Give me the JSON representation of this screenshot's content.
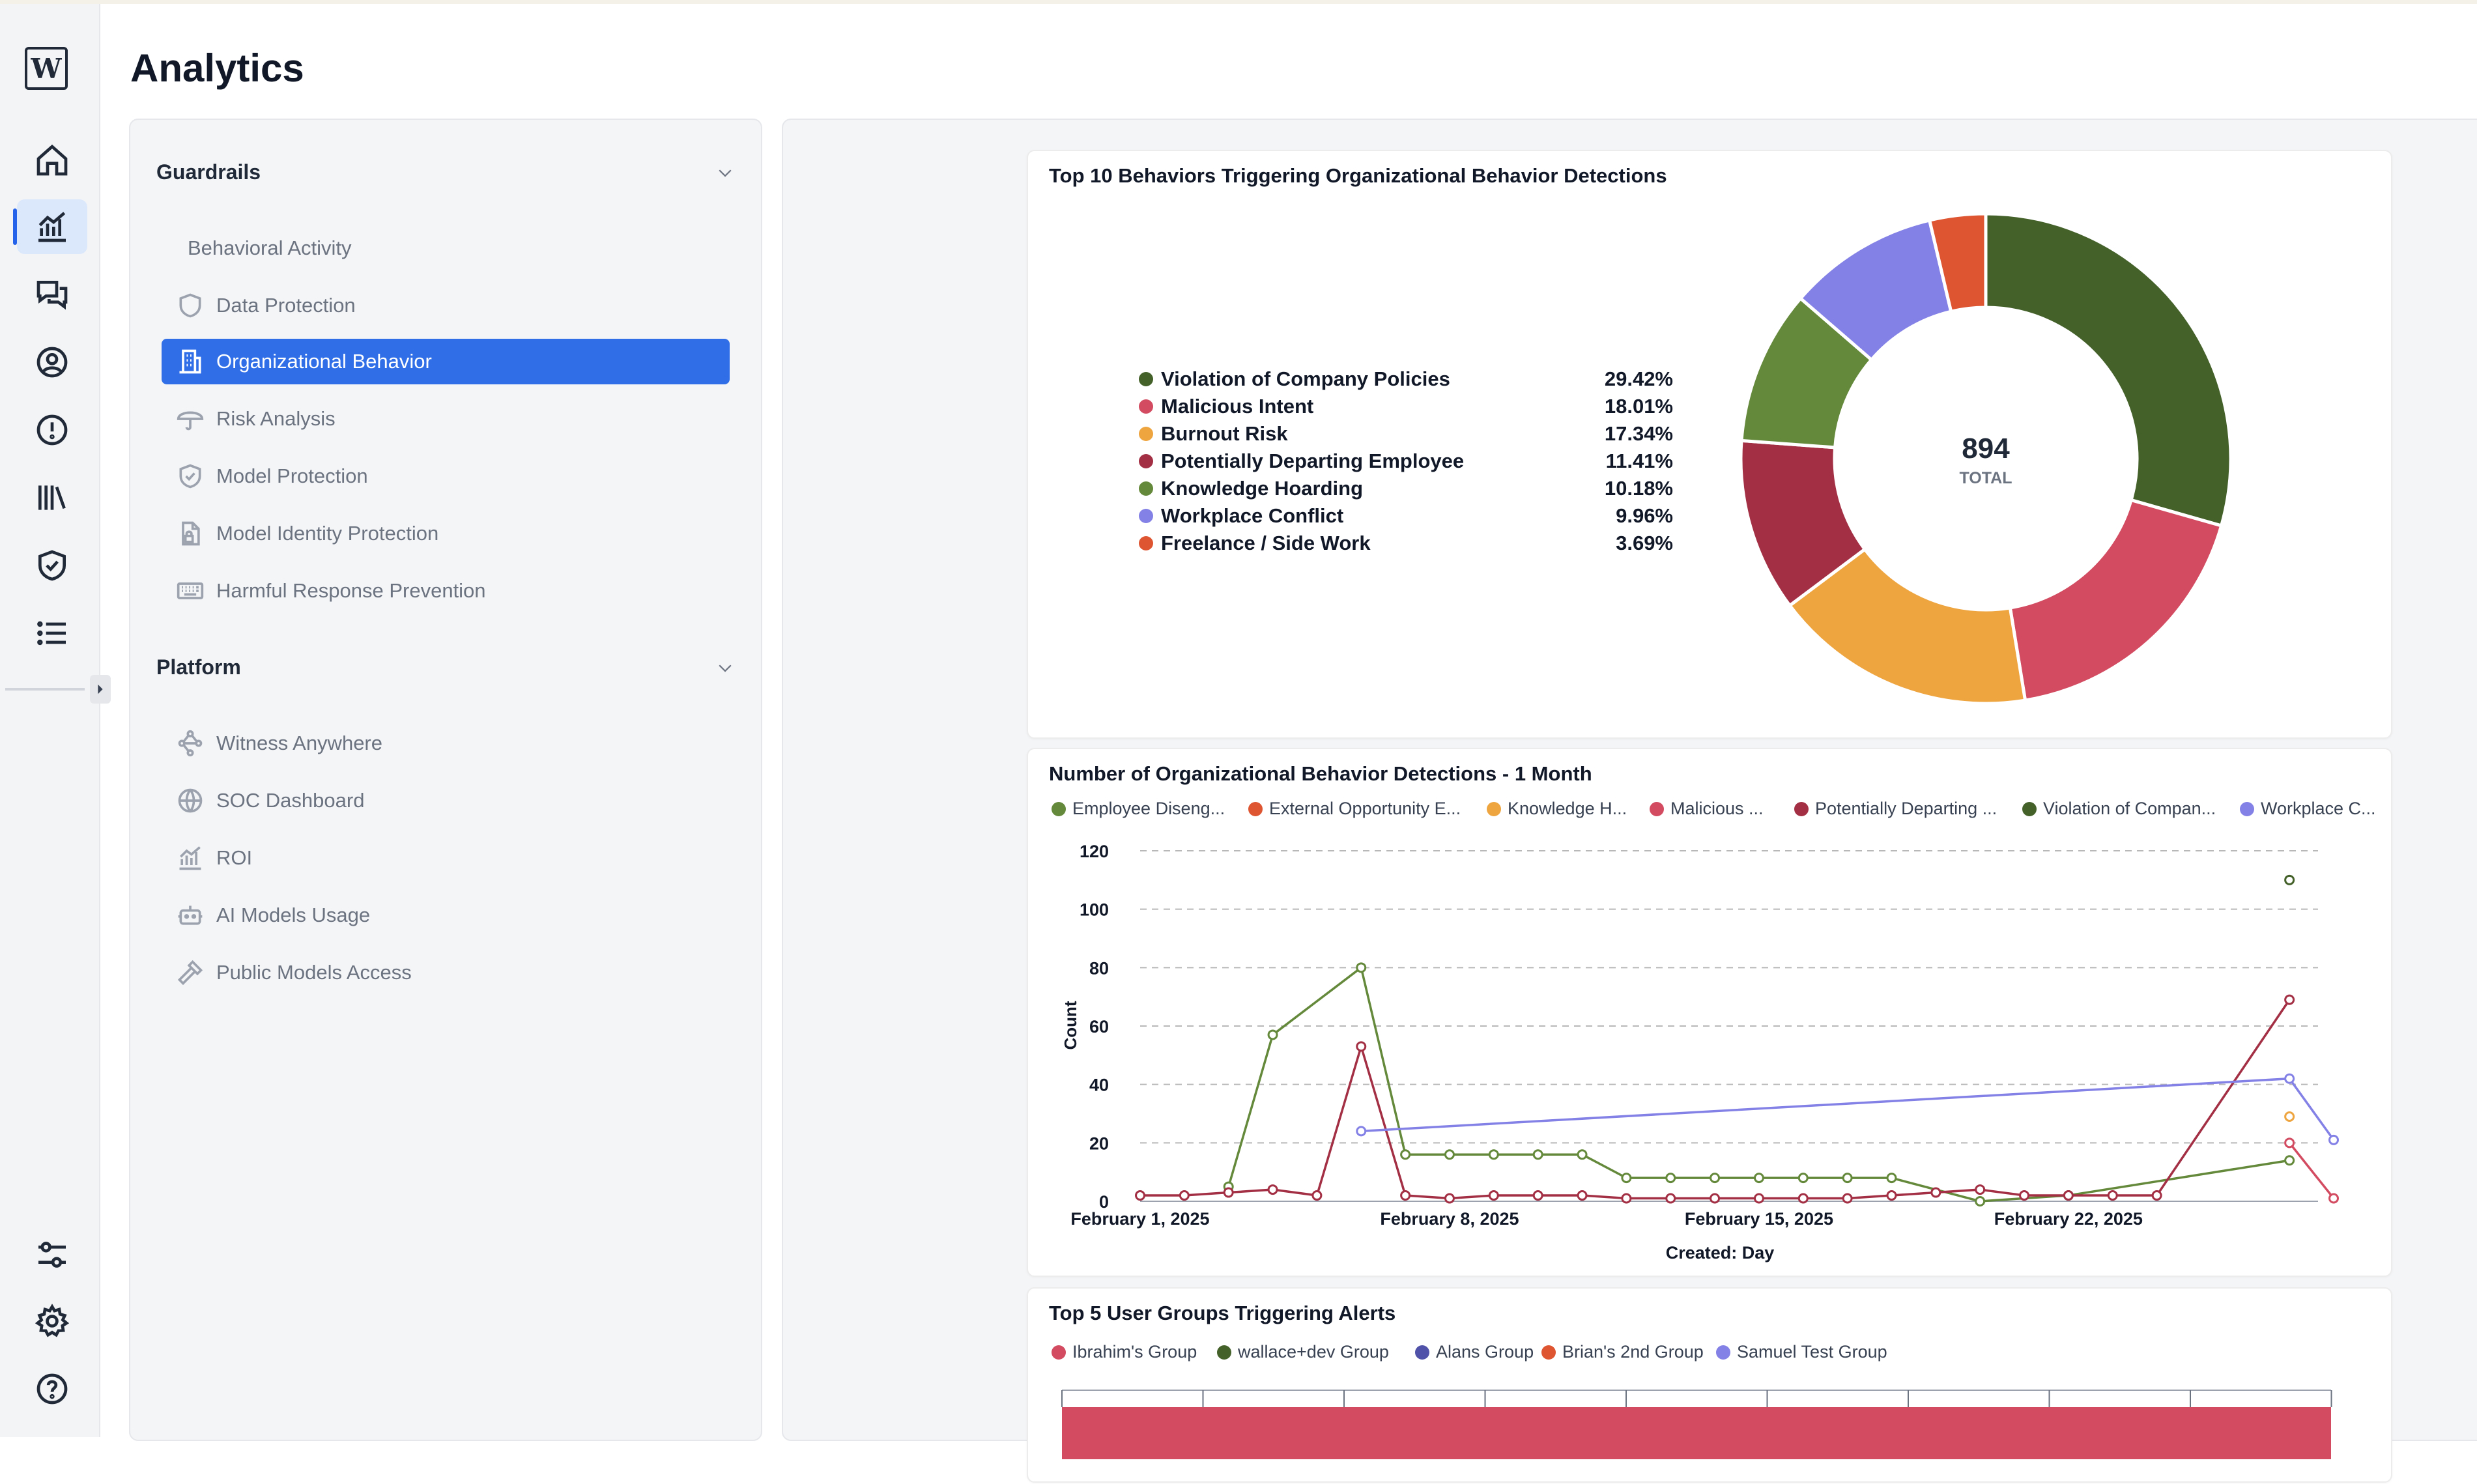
{
  "page": {
    "title": "Analytics"
  },
  "rail": {
    "logo_letter": "W",
    "icons": [
      "home-icon",
      "analytics-icon",
      "chat-icon",
      "user-circle-icon",
      "alert-icon",
      "library-icon",
      "shield-check-icon",
      "list-icon",
      "sliders-icon",
      "gear-icon",
      "help-icon"
    ],
    "active": "analytics-icon"
  },
  "nav": {
    "guardrails": {
      "label": "Guardrails",
      "items": [
        {
          "label": "Behavioral Activity",
          "icon": "none"
        },
        {
          "label": "Data Protection",
          "icon": "shield-icon"
        },
        {
          "label": "Organizational Behavior",
          "icon": "building-icon"
        },
        {
          "label": "Risk Analysis",
          "icon": "umbrella-icon"
        },
        {
          "label": "Model Protection",
          "icon": "shield-check-icon"
        },
        {
          "label": "Model Identity Protection",
          "icon": "file-lock-icon"
        },
        {
          "label": "Harmful Response Prevention",
          "icon": "keyboard-icon"
        }
      ],
      "active_index": 2
    },
    "platform": {
      "label": "Platform",
      "items": [
        {
          "label": "Witness Anywhere",
          "icon": "workflow-icon"
        },
        {
          "label": "SOC Dashboard",
          "icon": "globe-icon"
        },
        {
          "label": "ROI",
          "icon": "chart-icon"
        },
        {
          "label": "AI Models Usage",
          "icon": "robot-icon"
        },
        {
          "label": "Public Models Access",
          "icon": "hammer-icon"
        }
      ]
    }
  },
  "donut_card": {
    "title": "Top 10 Behaviors Triggering Organizational Behavior Detections",
    "total_value": "894",
    "total_label": "TOTAL",
    "chart_data": {
      "type": "pie",
      "title": "Top 10 Behaviors Triggering Organizational Behavior Detections",
      "total": 894,
      "slices": [
        {
          "label": "Violation of Company Policies",
          "percent_label": "29.42%",
          "value": 29.42,
          "color": "#44612a"
        },
        {
          "label": "Malicious Intent",
          "percent_label": "18.01%",
          "value": 18.01,
          "color": "#d24b60"
        },
        {
          "label": "Burnout Risk",
          "percent_label": "17.34%",
          "value": 17.34,
          "color": "#eea43f"
        },
        {
          "label": "Potentially Departing Employee",
          "percent_label": "11.41%",
          "value": 11.41,
          "color": "#a32f44"
        },
        {
          "label": "Knowledge Hoarding",
          "percent_label": "10.18%",
          "value": 10.18,
          "color": "#64893a"
        },
        {
          "label": "Workplace Conflict",
          "percent_label": "9.96%",
          "value": 9.96,
          "color": "#8380e6"
        },
        {
          "label": "Freelance / Side Work",
          "percent_label": "3.69%",
          "value": 3.69,
          "color": "#de5532"
        }
      ],
      "legend_placement": "left"
    }
  },
  "line_card": {
    "title": "Number of Organizational Behavior Detections - 1 Month",
    "chart_data": {
      "type": "line",
      "title": "Number of Organizational Behavior Detections - 1 Month",
      "xlabel": "Created: Day",
      "ylabel": "Count",
      "ylim": [
        0,
        120
      ],
      "yticks": [
        "0",
        "20",
        "40",
        "60",
        "80",
        "100",
        "120"
      ],
      "xticks": [
        {
          "label": "February 1, 2025",
          "x": "2025-02-01"
        },
        {
          "label": "February 8, 2025",
          "x": "2025-02-08"
        },
        {
          "label": "February 15, 2025",
          "x": "2025-02-15"
        },
        {
          "label": "February 22, 2025",
          "x": "2025-02-22"
        }
      ],
      "xrange": [
        "2025-02-01",
        "2025-02-28"
      ],
      "grid": true,
      "legend_placement": "top",
      "series": [
        {
          "name": "Employee Diseng...",
          "color": "#64893a",
          "points": [
            [
              "2025-02-03",
              5
            ],
            [
              "2025-02-04",
              57
            ],
            [
              "2025-02-06",
              80
            ],
            [
              "2025-02-07",
              16
            ],
            [
              "2025-02-08",
              16
            ],
            [
              "2025-02-09",
              16
            ],
            [
              "2025-02-10",
              16
            ],
            [
              "2025-02-11",
              16
            ],
            [
              "2025-02-12",
              8
            ],
            [
              "2025-02-13",
              8
            ],
            [
              "2025-02-14",
              8
            ],
            [
              "2025-02-15",
              8
            ],
            [
              "2025-02-16",
              8
            ],
            [
              "2025-02-17",
              8
            ],
            [
              "2025-02-18",
              8
            ],
            [
              "2025-02-20",
              0
            ],
            [
              "2025-02-22",
              2
            ],
            [
              "2025-02-27",
              14
            ]
          ]
        },
        {
          "name": "External Opportunity E...",
          "color": "#de5532",
          "points": []
        },
        {
          "name": "Knowledge H...",
          "color": "#eea43f",
          "points": [
            [
              "2025-02-27",
              29
            ]
          ]
        },
        {
          "name": "Malicious ...",
          "color": "#d24b60",
          "points": [
            [
              "2025-02-27",
              20
            ],
            [
              "2025-02-28",
              1
            ]
          ]
        },
        {
          "name": "Potentially Departing ...",
          "color": "#a32f44",
          "points": [
            [
              "2025-02-01",
              2
            ],
            [
              "2025-02-02",
              2
            ],
            [
              "2025-02-03",
              3
            ],
            [
              "2025-02-04",
              4
            ],
            [
              "2025-02-05",
              2
            ],
            [
              "2025-02-06",
              53
            ],
            [
              "2025-02-07",
              2
            ],
            [
              "2025-02-08",
              1
            ],
            [
              "2025-02-09",
              2
            ],
            [
              "2025-02-10",
              2
            ],
            [
              "2025-02-11",
              2
            ],
            [
              "2025-02-12",
              1
            ],
            [
              "2025-02-13",
              1
            ],
            [
              "2025-02-14",
              1
            ],
            [
              "2025-02-15",
              1
            ],
            [
              "2025-02-16",
              1
            ],
            [
              "2025-02-17",
              1
            ],
            [
              "2025-02-18",
              2
            ],
            [
              "2025-02-19",
              3
            ],
            [
              "2025-02-20",
              4
            ],
            [
              "2025-02-21",
              2
            ],
            [
              "2025-02-22",
              2
            ],
            [
              "2025-02-23",
              2
            ],
            [
              "2025-02-24",
              2
            ],
            [
              "2025-02-27",
              69
            ]
          ]
        },
        {
          "name": "Violation of Compan...",
          "color": "#44612a",
          "points": [
            [
              "2025-02-27",
              110
            ]
          ]
        },
        {
          "name": "Workplace C...",
          "color": "#8380e6",
          "points": [
            [
              "2025-02-06",
              24
            ],
            [
              "2025-02-27",
              42
            ],
            [
              "2025-02-28",
              21
            ]
          ]
        }
      ]
    }
  },
  "groups_card": {
    "title": "Top 5 User Groups Triggering Alerts",
    "legend": [
      {
        "name": "Ibrahim's Group",
        "color": "#d24b60"
      },
      {
        "name": "wallace+dev Group",
        "color": "#44612a"
      },
      {
        "name": "Alans Group",
        "color": "#4f52a8"
      },
      {
        "name": "Brian's 2nd Group",
        "color": "#de5532"
      },
      {
        "name": "Samuel Test Group",
        "color": "#8380e6"
      }
    ]
  }
}
